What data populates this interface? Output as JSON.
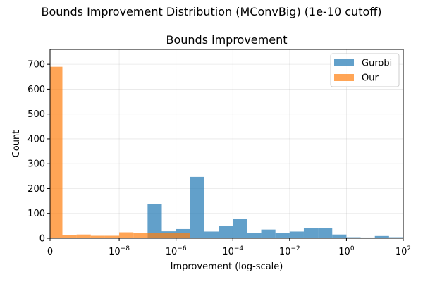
{
  "chart_data": {
    "type": "bar",
    "suptitle": "Bounds Improvement Distribution (MConvBig) (1e-10 cutoff)",
    "title": "Bounds improvement",
    "xlabel": "Improvement (log-scale)",
    "ylabel": "Count",
    "xscale": "symlog",
    "linthresh": 1e-10,
    "xlim": [
      0,
      100
    ],
    "ylim": [
      0,
      760
    ],
    "yticks": [
      0,
      100,
      200,
      300,
      400,
      500,
      600,
      700
    ],
    "xticks": [
      {
        "value": 0,
        "base": "0",
        "exp": ""
      },
      {
        "value": 1e-08,
        "base": "10",
        "exp": "−8"
      },
      {
        "value": 1e-06,
        "base": "10",
        "exp": "−6"
      },
      {
        "value": 0.0001,
        "base": "10",
        "exp": "−4"
      },
      {
        "value": 0.01,
        "base": "10",
        "exp": "−2"
      },
      {
        "value": 1,
        "base": "10",
        "exp": "0"
      },
      {
        "value": 100,
        "base": "10",
        "exp": "2"
      }
    ],
    "grid": true,
    "legend_position": "top-right",
    "series": [
      {
        "name": "Gurobi",
        "color": "#1f77b4",
        "bins": [
          {
            "lo": 3.16e-08,
            "hi": 1e-07,
            "count": 0
          },
          {
            "lo": 1e-07,
            "hi": 3.16e-07,
            "count": 137
          },
          {
            "lo": 3.16e-07,
            "hi": 1e-06,
            "count": 28
          },
          {
            "lo": 1e-06,
            "hi": 3.16e-06,
            "count": 37
          },
          {
            "lo": 3.16e-06,
            "hi": 1e-05,
            "count": 247
          },
          {
            "lo": 1e-05,
            "hi": 3.16e-05,
            "count": 27
          },
          {
            "lo": 3.16e-05,
            "hi": 0.0001,
            "count": 49
          },
          {
            "lo": 0.0001,
            "hi": 0.000316,
            "count": 78
          },
          {
            "lo": 0.000316,
            "hi": 0.001,
            "count": 22
          },
          {
            "lo": 0.001,
            "hi": 0.00316,
            "count": 35
          },
          {
            "lo": 0.00316,
            "hi": 0.01,
            "count": 20
          },
          {
            "lo": 0.01,
            "hi": 0.0316,
            "count": 27
          },
          {
            "lo": 0.0316,
            "hi": 0.1,
            "count": 41
          },
          {
            "lo": 0.1,
            "hi": 0.316,
            "count": 41
          },
          {
            "lo": 0.316,
            "hi": 1,
            "count": 15
          },
          {
            "lo": 1,
            "hi": 3.16,
            "count": 4
          },
          {
            "lo": 3.16,
            "hi": 10,
            "count": 3
          },
          {
            "lo": 10,
            "hi": 31.6,
            "count": 9
          },
          {
            "lo": 31.6,
            "hi": 100,
            "count": 4
          }
        ]
      },
      {
        "name": "Our",
        "color": "#ff7f0e",
        "bins": [
          {
            "lo": 0,
            "hi": 1e-10,
            "count": 690
          },
          {
            "lo": 1e-10,
            "hi": 3.16e-10,
            "count": 13
          },
          {
            "lo": 3.16e-10,
            "hi": 1e-09,
            "count": 15
          },
          {
            "lo": 1e-09,
            "hi": 3.16e-09,
            "count": 10
          },
          {
            "lo": 3.16e-09,
            "hi": 1e-08,
            "count": 10
          },
          {
            "lo": 1e-08,
            "hi": 3.16e-08,
            "count": 24
          },
          {
            "lo": 3.16e-08,
            "hi": 1e-07,
            "count": 20
          },
          {
            "lo": 1e-07,
            "hi": 3.16e-07,
            "count": 21
          },
          {
            "lo": 3.16e-07,
            "hi": 1e-06,
            "count": 22
          },
          {
            "lo": 1e-06,
            "hi": 3.16e-06,
            "count": 20
          }
        ]
      }
    ]
  }
}
